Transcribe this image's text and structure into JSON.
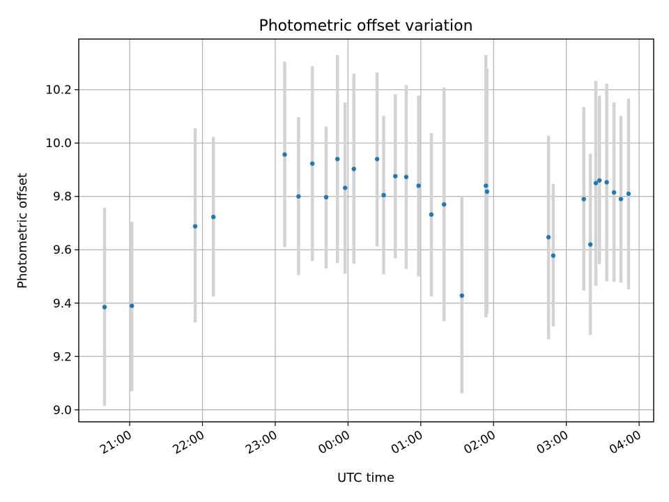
{
  "chart_data": {
    "type": "scatter",
    "title": "Photometric offset variation",
    "xlabel": "UTC time",
    "ylabel": "Photometric offset",
    "x_unit": "hours",
    "xlim": [
      20.3,
      28.2
    ],
    "ylim": [
      8.955,
      10.39
    ],
    "x_ticks": [
      {
        "value": 21,
        "label": "21:00"
      },
      {
        "value": 22,
        "label": "22:00"
      },
      {
        "value": 23,
        "label": "23:00"
      },
      {
        "value": 24,
        "label": "00:00"
      },
      {
        "value": 25,
        "label": "01:00"
      },
      {
        "value": 26,
        "label": "02:00"
      },
      {
        "value": 27,
        "label": "03:00"
      },
      {
        "value": 28,
        "label": "04:00"
      }
    ],
    "y_ticks": [
      {
        "value": 9.0,
        "label": "9.0"
      },
      {
        "value": 9.2,
        "label": "9.2"
      },
      {
        "value": 9.4,
        "label": "9.4"
      },
      {
        "value": 9.6,
        "label": "9.6"
      },
      {
        "value": 9.8,
        "label": "9.8"
      },
      {
        "value": 10.0,
        "label": "10.0"
      },
      {
        "value": 10.2,
        "label": "10.2"
      }
    ],
    "grid": true,
    "point_color": "#1f77b4",
    "errorbar_color": "#d3d3d3",
    "points": [
      {
        "x": 20.655,
        "y": 9.385,
        "ylow": 9.015,
        "yhigh": 9.757
      },
      {
        "x": 21.03,
        "y": 9.39,
        "ylow": 9.07,
        "yhigh": 9.705
      },
      {
        "x": 21.9,
        "y": 9.688,
        "ylow": 9.327,
        "yhigh": 10.055
      },
      {
        "x": 22.15,
        "y": 9.723,
        "ylow": 9.425,
        "yhigh": 10.023
      },
      {
        "x": 23.13,
        "y": 9.957,
        "ylow": 9.61,
        "yhigh": 10.305
      },
      {
        "x": 23.32,
        "y": 9.8,
        "ylow": 9.505,
        "yhigh": 10.097
      },
      {
        "x": 23.51,
        "y": 9.923,
        "ylow": 9.558,
        "yhigh": 10.288
      },
      {
        "x": 23.7,
        "y": 9.797,
        "ylow": 9.53,
        "yhigh": 10.062
      },
      {
        "x": 23.855,
        "y": 9.94,
        "ylow": 9.55,
        "yhigh": 10.33
      },
      {
        "x": 23.96,
        "y": 9.832,
        "ylow": 9.51,
        "yhigh": 10.152
      },
      {
        "x": 24.08,
        "y": 9.903,
        "ylow": 9.548,
        "yhigh": 10.26
      },
      {
        "x": 24.4,
        "y": 9.94,
        "ylow": 9.612,
        "yhigh": 10.265
      },
      {
        "x": 24.49,
        "y": 9.805,
        "ylow": 9.508,
        "yhigh": 10.102
      },
      {
        "x": 24.65,
        "y": 9.876,
        "ylow": 9.568,
        "yhigh": 10.183
      },
      {
        "x": 24.8,
        "y": 9.873,
        "ylow": 9.528,
        "yhigh": 10.217
      },
      {
        "x": 24.97,
        "y": 9.84,
        "ylow": 9.5,
        "yhigh": 10.178
      },
      {
        "x": 25.145,
        "y": 9.732,
        "ylow": 9.425,
        "yhigh": 10.037
      },
      {
        "x": 25.32,
        "y": 9.77,
        "ylow": 9.332,
        "yhigh": 10.208
      },
      {
        "x": 25.565,
        "y": 9.428,
        "ylow": 9.062,
        "yhigh": 9.8
      },
      {
        "x": 25.895,
        "y": 9.84,
        "ylow": 9.347,
        "yhigh": 10.33
      },
      {
        "x": 25.91,
        "y": 9.818,
        "ylow": 9.36,
        "yhigh": 10.28
      },
      {
        "x": 26.755,
        "y": 9.647,
        "ylow": 9.264,
        "yhigh": 10.028
      },
      {
        "x": 26.82,
        "y": 9.578,
        "ylow": 9.313,
        "yhigh": 9.847
      },
      {
        "x": 27.24,
        "y": 9.79,
        "ylow": 9.447,
        "yhigh": 10.135
      },
      {
        "x": 27.33,
        "y": 9.62,
        "ylow": 9.28,
        "yhigh": 9.96
      },
      {
        "x": 27.405,
        "y": 9.85,
        "ylow": 9.465,
        "yhigh": 10.233
      },
      {
        "x": 27.455,
        "y": 9.86,
        "ylow": 9.546,
        "yhigh": 10.177
      },
      {
        "x": 27.555,
        "y": 9.853,
        "ylow": 9.482,
        "yhigh": 10.222
      },
      {
        "x": 27.655,
        "y": 9.815,
        "ylow": 9.48,
        "yhigh": 10.152
      },
      {
        "x": 27.75,
        "y": 9.79,
        "ylow": 9.477,
        "yhigh": 10.102
      },
      {
        "x": 27.855,
        "y": 9.81,
        "ylow": 9.452,
        "yhigh": 10.167
      }
    ]
  }
}
